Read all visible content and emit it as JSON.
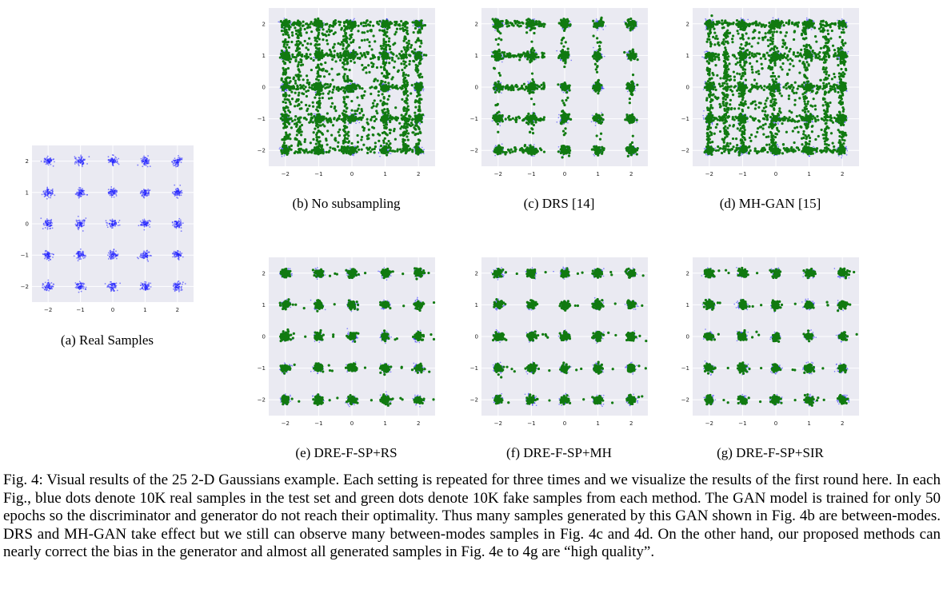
{
  "figure": {
    "panels": [
      {
        "id": "a",
        "caption": "(a) Real Samples",
        "method": "real"
      },
      {
        "id": "b",
        "caption": "(b) No subsampling",
        "method": "none"
      },
      {
        "id": "c",
        "caption": "(c) DRS [14]",
        "method": "drs"
      },
      {
        "id": "d",
        "caption": "(d) MH-GAN [15]",
        "method": "mhgan"
      },
      {
        "id": "e",
        "caption": "(e) DRE-F-SP+RS",
        "method": "ours"
      },
      {
        "id": "f",
        "caption": "(f) DRE-F-SP+MH",
        "method": "ours"
      },
      {
        "id": "g",
        "caption": "(g) DRE-F-SP+SIR",
        "method": "ours"
      }
    ],
    "caption": "Fig. 4: Visual results of the 25 2-D Gaussians example. Each setting is repeated for three times and we visualize the results of the first round here. In each Fig., blue dots denote 10K real samples in the test set and green dots denote 10K fake samples from each method. The GAN model is trained for only 50 epochs so the discriminator and generator do not reach their optimality. Thus many samples generated by this GAN shown in Fig. 4b are between-modes. DRS and MH-GAN take effect but we still can observe many between-modes samples in Fig. 4c and 4d. On the other hand, our proposed methods can nearly correct the bias in the generator and almost all generated samples in Fig. 4e to 4g are “high quality”."
  },
  "chart_data": [
    {
      "type": "scatter",
      "panel": "a",
      "series": [
        {
          "color": "#1f1fff",
          "mode_centers_x": [
            -2,
            -1,
            0,
            1,
            2
          ],
          "mode_centers_y": [
            -2,
            -1,
            0,
            1,
            2
          ]
        }
      ],
      "x_ticks": [
        "−2",
        "−1",
        "0",
        "1",
        "2"
      ],
      "y_ticks": [
        "−2",
        "−1",
        "0",
        "1",
        "2"
      ],
      "xlim": [
        -2.5,
        2.5
      ],
      "ylim": [
        -2.5,
        2.5
      ],
      "grid": true
    },
    {
      "type": "scatter",
      "panel": "b",
      "series": [
        {
          "color": "#1f1fff"
        },
        {
          "color": "#117a11",
          "between_modes": "many"
        }
      ],
      "x_ticks": [
        "−2",
        "−1",
        "0",
        "1",
        "2"
      ],
      "y_ticks": [
        "−2",
        "−1",
        "0",
        "1",
        "2"
      ],
      "xlim": [
        -2.5,
        2.5
      ],
      "ylim": [
        -2.5,
        2.5
      ],
      "grid": true
    },
    {
      "type": "scatter",
      "panel": "c",
      "series": [
        {
          "color": "#1f1fff"
        },
        {
          "color": "#117a11",
          "between_modes": "some"
        }
      ],
      "x_ticks": [
        "−2",
        "−1",
        "0",
        "1",
        "2"
      ],
      "y_ticks": [
        "−2",
        "−1",
        "0",
        "1",
        "2"
      ],
      "xlim": [
        -2.5,
        2.5
      ],
      "ylim": [
        -2.5,
        2.5
      ],
      "grid": true
    },
    {
      "type": "scatter",
      "panel": "d",
      "series": [
        {
          "color": "#1f1fff"
        },
        {
          "color": "#117a11",
          "between_modes": "many"
        }
      ],
      "x_ticks": [
        "−2",
        "−1",
        "0",
        "1",
        "2"
      ],
      "y_ticks": [
        "−2",
        "−1",
        "0",
        "1",
        "2"
      ],
      "xlim": [
        -2.5,
        2.5
      ],
      "ylim": [
        -2.5,
        2.5
      ],
      "grid": true
    },
    {
      "type": "scatter",
      "panel": "e",
      "series": [
        {
          "color": "#1f1fff"
        },
        {
          "color": "#117a11",
          "between_modes": "few"
        }
      ],
      "x_ticks": [
        "−2",
        "−1",
        "0",
        "1",
        "2"
      ],
      "y_ticks": [
        "−2",
        "−1",
        "0",
        "1",
        "2"
      ],
      "xlim": [
        -2.5,
        2.5
      ],
      "ylim": [
        -2.5,
        2.5
      ],
      "grid": true
    },
    {
      "type": "scatter",
      "panel": "f",
      "series": [
        {
          "color": "#1f1fff"
        },
        {
          "color": "#117a11",
          "between_modes": "few"
        }
      ],
      "x_ticks": [
        "−2",
        "−1",
        "0",
        "1",
        "2"
      ],
      "y_ticks": [
        "−2",
        "−1",
        "0",
        "1",
        "2"
      ],
      "xlim": [
        -2.5,
        2.5
      ],
      "ylim": [
        -2.5,
        2.5
      ],
      "grid": true
    },
    {
      "type": "scatter",
      "panel": "g",
      "series": [
        {
          "color": "#1f1fff"
        },
        {
          "color": "#117a11",
          "between_modes": "few"
        }
      ],
      "x_ticks": [
        "−2",
        "−1",
        "0",
        "1",
        "2"
      ],
      "y_ticks": [
        "−2",
        "−1",
        "0",
        "1",
        "2"
      ],
      "xlim": [
        -2.5,
        2.5
      ],
      "ylim": [
        -2.5,
        2.5
      ],
      "grid": true
    }
  ]
}
